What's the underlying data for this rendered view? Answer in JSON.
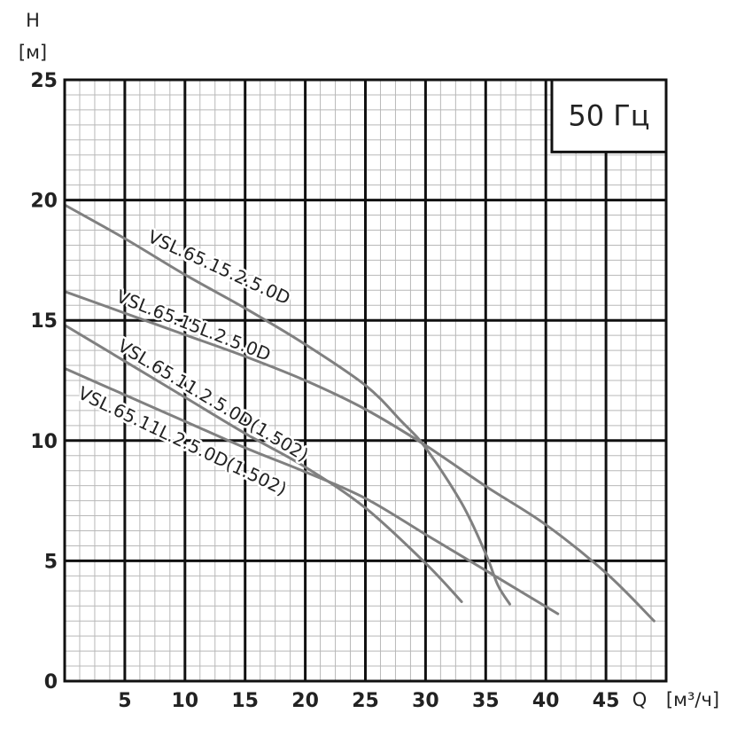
{
  "chart_data": {
    "type": "line",
    "frequency_label": "50 Гц",
    "y_axis": {
      "label": "H",
      "unit": "[м]",
      "range": [
        0,
        25
      ],
      "ticks": [
        "0",
        "5",
        "10",
        "15",
        "20",
        "25"
      ]
    },
    "x_axis": {
      "label": "Q",
      "unit": "[м³/ч]",
      "range": [
        0,
        50
      ],
      "ticks": [
        "5",
        "10",
        "15",
        "20",
        "25",
        "30",
        "35",
        "40",
        "45"
      ]
    },
    "minor_grid": {
      "x_step": 1.25,
      "y_step": 0.625
    },
    "grid": true,
    "series": [
      {
        "name": "VSL.65.15.2.5.0D",
        "points": [
          [
            0,
            19.8
          ],
          [
            5,
            18.4
          ],
          [
            10,
            16.9
          ],
          [
            15,
            15.5
          ],
          [
            20,
            14.0
          ],
          [
            25,
            12.3
          ],
          [
            28,
            10.8
          ],
          [
            30,
            9.7
          ],
          [
            33,
            7.4
          ],
          [
            35,
            5.3
          ],
          [
            36,
            4.0
          ],
          [
            37,
            3.2
          ]
        ]
      },
      {
        "name": "VSL.65.15L.2.5.0D",
        "points": [
          [
            0,
            16.2
          ],
          [
            5,
            15.3
          ],
          [
            10,
            14.4
          ],
          [
            15,
            13.5
          ],
          [
            20,
            12.5
          ],
          [
            25,
            11.3
          ],
          [
            30,
            9.8
          ],
          [
            35,
            8.1
          ],
          [
            40,
            6.5
          ],
          [
            45,
            4.5
          ],
          [
            49,
            2.5
          ]
        ]
      },
      {
        "name": "VSL.65.11.2.5.0D(1.502)",
        "points": [
          [
            0,
            14.8
          ],
          [
            5,
            13.3
          ],
          [
            10,
            11.8
          ],
          [
            15,
            10.3
          ],
          [
            20,
            8.9
          ],
          [
            25,
            7.2
          ],
          [
            30,
            4.9
          ],
          [
            33,
            3.3
          ]
        ]
      },
      {
        "name": "VSL.65.11L.2.5.0D(1.502)",
        "points": [
          [
            0,
            13.0
          ],
          [
            5,
            11.9
          ],
          [
            10,
            10.8
          ],
          [
            15,
            9.7
          ],
          [
            20,
            8.7
          ],
          [
            25,
            7.6
          ],
          [
            30,
            6.1
          ],
          [
            35,
            4.6
          ],
          [
            41,
            2.8
          ]
        ]
      }
    ]
  }
}
